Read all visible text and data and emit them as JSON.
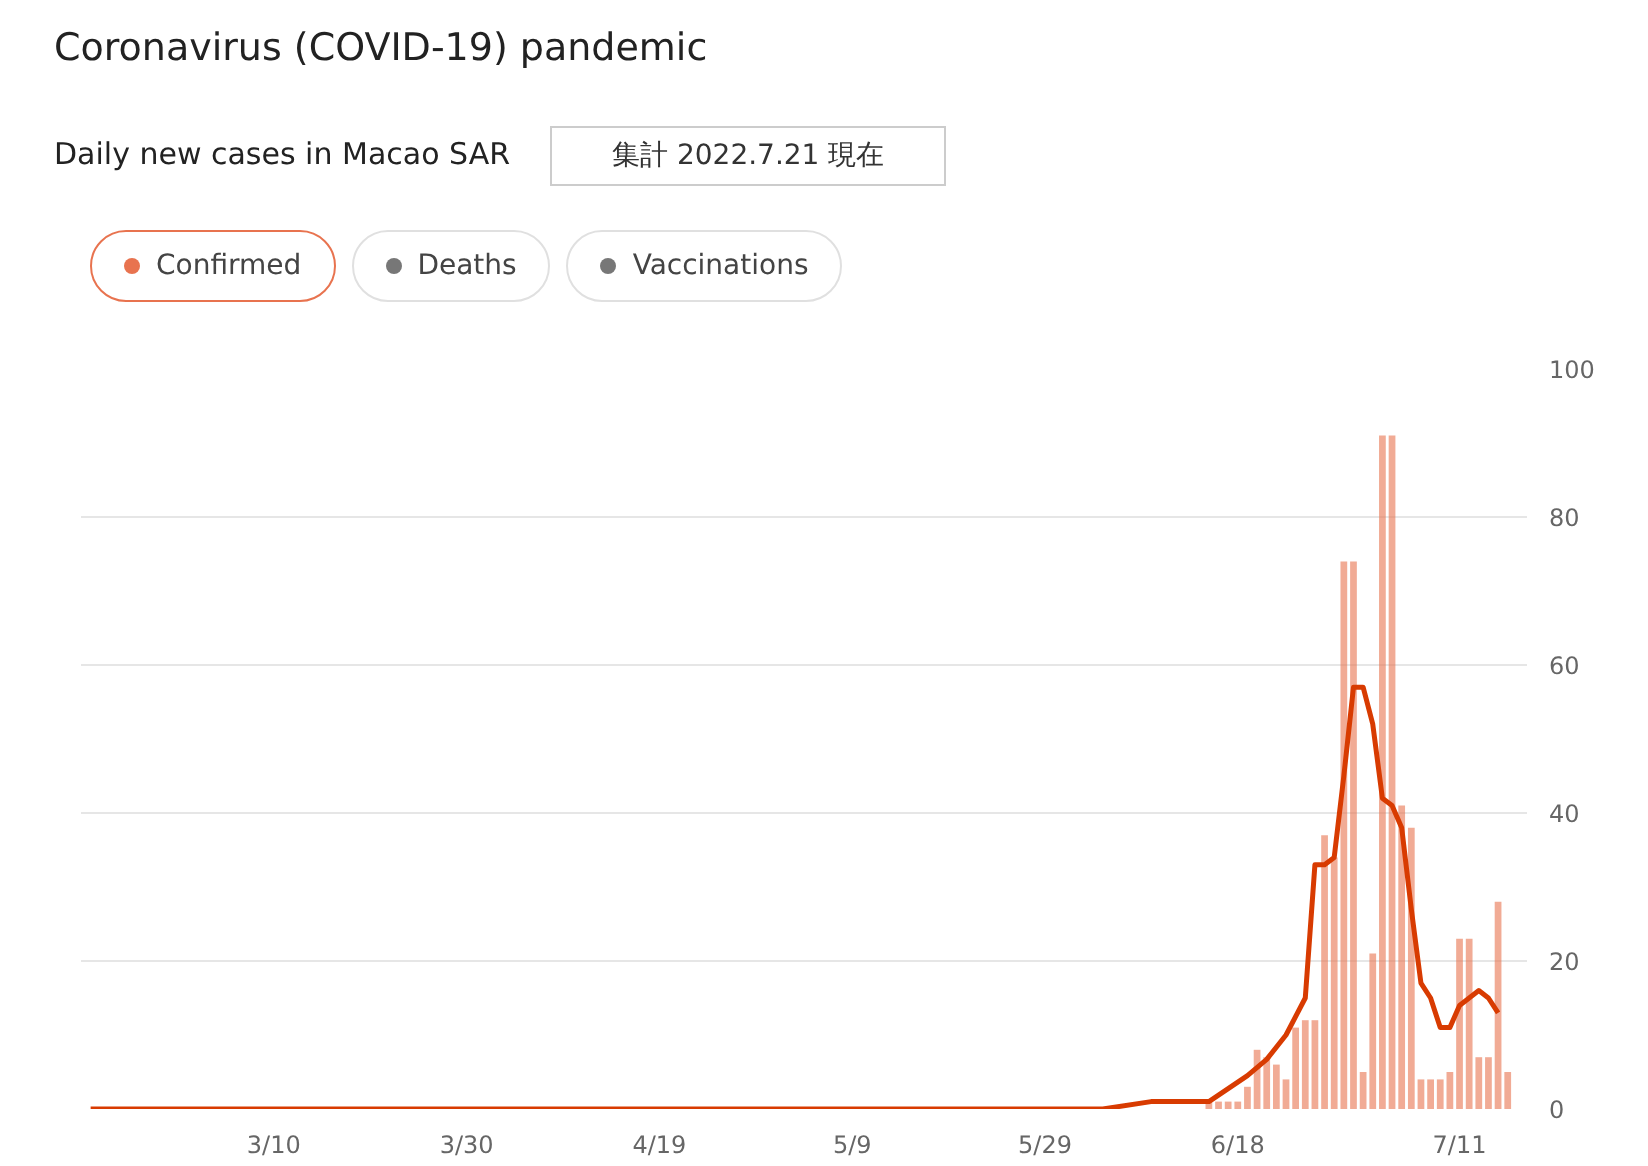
{
  "chart_data": {
    "type": "bar",
    "title": "Coronavirus (COVID-19) pandemic",
    "subtitle": "Daily new cases in Macao SAR",
    "annotations": [
      "集計 2022.7.21 現在",
      "Deaths",
      "Vaccinations"
    ],
    "x": [
      "2022-06-15",
      "2022-06-16",
      "2022-06-17",
      "2022-06-18",
      "2022-06-19",
      "2022-06-20",
      "2022-06-21",
      "2022-06-22",
      "2022-06-23",
      "2022-06-24",
      "2022-06-25",
      "2022-06-26",
      "2022-06-27",
      "2022-06-28",
      "2022-06-29",
      "2022-06-30",
      "2022-07-01",
      "2022-07-02",
      "2022-07-03",
      "2022-07-04",
      "2022-07-05",
      "2022-07-06",
      "2022-07-07",
      "2022-07-08",
      "2022-07-09",
      "2022-07-10",
      "2022-07-11",
      "2022-07-12",
      "2022-07-13",
      "2022-07-14",
      "2022-07-15",
      "2022-07-16"
    ],
    "series": [
      {
        "name": "Confirmed",
        "color": "#e8734f",
        "values": [
          1,
          1,
          1,
          1,
          3,
          8,
          7,
          6,
          4,
          11,
          12,
          12,
          37,
          34,
          74,
          74,
          5,
          21,
          91,
          91,
          41,
          38,
          4,
          4,
          4,
          5,
          23,
          23,
          7,
          7,
          28,
          5
        ]
      },
      {
        "type": "line",
        "color": "#d83b01",
        "x": [
          "2022-02-19",
          "2022-06-04",
          "2022-06-09",
          "2022-06-15",
          "2022-06-19",
          "2022-06-21",
          "2022-06-23",
          "2022-06-25",
          "2022-06-26",
          "2022-06-27",
          "2022-06-28",
          "2022-06-29",
          "2022-06-30",
          "2022-07-01",
          "2022-07-02",
          "2022-07-03",
          "2022-07-04",
          "2022-07-05",
          "2022-07-06",
          "2022-07-07",
          "2022-07-08",
          "2022-07-09",
          "2022-07-10",
          "2022-07-11",
          "2022-07-12",
          "2022-07-13",
          "2022-07-14",
          "2022-07-15"
        ],
        "values": [
          0,
          0,
          1,
          1,
          4.5,
          6.7,
          10,
          15,
          33,
          33,
          34,
          45,
          57,
          57,
          52,
          42,
          41,
          38,
          27,
          17,
          15,
          11,
          11,
          14,
          15,
          16,
          15,
          13
        ]
      }
    ],
    "xlim": [
      "2022-02-18",
      "2022-07-18"
    ],
    "xticks": [
      {
        "value": "2022-03-10",
        "label": "3/10"
      },
      {
        "value": "2022-03-30",
        "label": "3/30"
      },
      {
        "value": "2022-04-19",
        "label": "4/19"
      },
      {
        "value": "2022-05-09",
        "label": "5/9"
      },
      {
        "value": "2022-05-29",
        "label": "5/29"
      },
      {
        "value": "2022-06-18",
        "label": "6/18"
      },
      {
        "value": "2022-07-11",
        "label": "7/11"
      }
    ],
    "ylim": [
      0,
      100
    ],
    "yticks": [
      0,
      20,
      40,
      60,
      80,
      100
    ],
    "grid": "y",
    "legend": "top left"
  }
}
